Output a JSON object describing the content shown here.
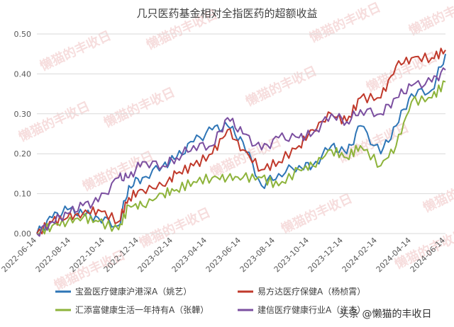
{
  "chart_data": {
    "type": "line",
    "title": "几只医药基金相对全指医药的超额收益",
    "xlabel": "",
    "ylabel": "",
    "x_ticks": [
      "2022-06-14",
      "2022-08-14",
      "2022-10-14",
      "2022-12-14",
      "2023-02-14",
      "2023-04-14",
      "2023-06-14",
      "2023-08-14",
      "2023-10-14",
      "2023-12-14",
      "2024-02-14",
      "2024-04-14",
      "2024-06-14"
    ],
    "y_ticks": [
      "0.00",
      "0.10",
      "0.20",
      "0.30",
      "0.40",
      "0.50"
    ],
    "ylim": [
      0,
      0.5
    ],
    "xlim": [
      0,
      24
    ],
    "grid": "horizontal",
    "legend": "bottom",
    "series": [
      {
        "name": "宝盈医疗健康沪港深A（姚艺）",
        "color": "#2e75b6",
        "values": [
          0.0,
          0.04,
          0.06,
          0.05,
          0.04,
          0.02,
          0.12,
          0.14,
          0.17,
          0.19,
          0.23,
          0.26,
          0.27,
          0.23,
          0.12,
          0.15,
          0.17,
          0.17,
          0.22,
          0.2,
          0.27,
          0.2,
          0.27,
          0.35,
          0.36,
          0.45
        ]
      },
      {
        "name": "易方达医疗保健A（杨桢霄）",
        "color": "#c0392b",
        "values": [
          0.0,
          0.03,
          0.04,
          0.05,
          0.06,
          0.03,
          0.09,
          0.11,
          0.12,
          0.15,
          0.17,
          0.2,
          0.26,
          0.21,
          0.16,
          0.18,
          0.22,
          0.26,
          0.3,
          0.28,
          0.34,
          0.34,
          0.42,
          0.44,
          0.44,
          0.46
        ]
      },
      {
        "name": "汇添富健康生活一年持有A（张韡）",
        "color": "#8db33a",
        "values": [
          0.0,
          0.02,
          0.03,
          0.04,
          0.03,
          0.01,
          0.07,
          0.07,
          0.1,
          0.11,
          0.13,
          0.14,
          0.14,
          0.14,
          0.14,
          0.12,
          0.16,
          0.17,
          0.21,
          0.19,
          0.22,
          0.17,
          0.22,
          0.33,
          0.34,
          0.38
        ]
      },
      {
        "name": "建信医疗健康行业A（许杰）",
        "color": "#7b4fa0",
        "values": [
          0.0,
          0.03,
          0.05,
          0.07,
          0.08,
          0.14,
          0.14,
          0.18,
          0.17,
          0.19,
          0.22,
          0.22,
          0.29,
          0.25,
          0.21,
          0.24,
          0.24,
          0.25,
          0.3,
          0.28,
          0.31,
          0.3,
          0.34,
          0.37,
          0.38,
          0.41
        ]
      }
    ],
    "x_positions": [
      0,
      0.9,
      1.8,
      2.7,
      3.6,
      4.8,
      5.4,
      6.2,
      7.4,
      8.2,
      9.2,
      10.3,
      11.2,
      12.1,
      13.2,
      14.2,
      15.4,
      16.2,
      17.3,
      18.2,
      19.0,
      20.2,
      21.1,
      22.0,
      23.2,
      24.0
    ]
  },
  "watermark": "懒猫的丰收日",
  "credit": "头条 @懒猫的丰收日"
}
